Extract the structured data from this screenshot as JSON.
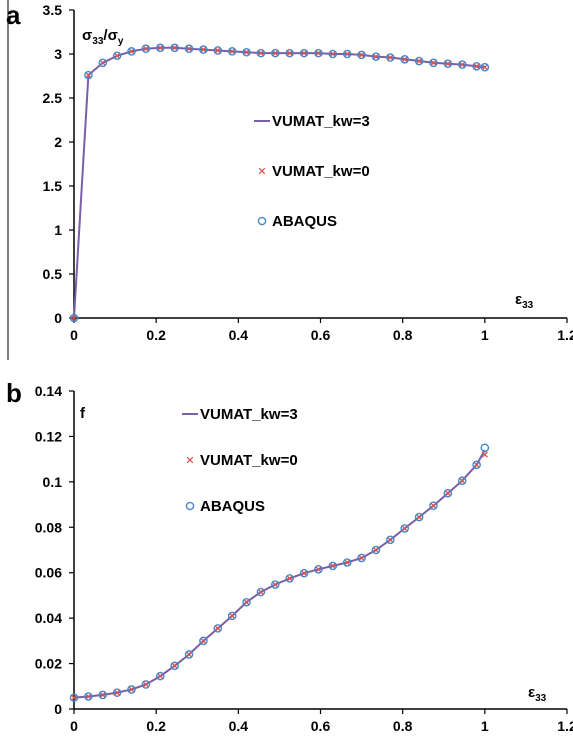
{
  "chart_data": [
    {
      "type": "line",
      "panel_label": "a",
      "ylabel": "σ33/σy",
      "xlabel": "ε33",
      "xlim": [
        0,
        1.2
      ],
      "ylim": [
        0,
        3.5
      ],
      "xticks": [
        "0",
        "0.2",
        "0.4",
        "0.6",
        "0.8",
        "1",
        "1.2"
      ],
      "yticks": [
        "0",
        "0.5",
        "1",
        "1.5",
        "2",
        "2.5",
        "3",
        "3.5"
      ],
      "grid": false,
      "legend_position": "center-right",
      "colors": {
        "line": "#7b5ea7",
        "cross": "#d9534f",
        "circle": "#4a86c5"
      },
      "series": [
        {
          "name": "VUMAT_kw=3",
          "marker": "line",
          "x": [
            0,
            0.035,
            0.07,
            0.105,
            0.14,
            0.175,
            0.21,
            0.245,
            0.28,
            0.315,
            0.35,
            0.385,
            0.42,
            0.455,
            0.49,
            0.525,
            0.56,
            0.595,
            0.63,
            0.665,
            0.7,
            0.735,
            0.77,
            0.805,
            0.84,
            0.875,
            0.91,
            0.945,
            0.98,
            1.0
          ],
          "y": [
            0,
            2.76,
            2.9,
            2.98,
            3.03,
            3.06,
            3.07,
            3.07,
            3.06,
            3.05,
            3.04,
            3.03,
            3.02,
            3.01,
            3.01,
            3.01,
            3.01,
            3.01,
            3.0,
            3.0,
            2.99,
            2.97,
            2.96,
            2.94,
            2.92,
            2.9,
            2.89,
            2.88,
            2.86,
            2.85
          ]
        },
        {
          "name": "VUMAT_kw=0",
          "marker": "cross",
          "x": [
            0,
            0.035,
            0.07,
            0.105,
            0.14,
            0.175,
            0.21,
            0.245,
            0.28,
            0.315,
            0.35,
            0.385,
            0.42,
            0.455,
            0.49,
            0.525,
            0.56,
            0.595,
            0.63,
            0.665,
            0.7,
            0.735,
            0.77,
            0.805,
            0.84,
            0.875,
            0.91,
            0.945,
            0.98,
            1.0
          ],
          "y": [
            0,
            2.76,
            2.9,
            2.98,
            3.03,
            3.06,
            3.07,
            3.07,
            3.06,
            3.05,
            3.04,
            3.03,
            3.02,
            3.01,
            3.01,
            3.01,
            3.01,
            3.01,
            3.0,
            3.0,
            2.99,
            2.97,
            2.96,
            2.94,
            2.92,
            2.9,
            2.89,
            2.88,
            2.86,
            2.85
          ]
        },
        {
          "name": "ABAQUS",
          "marker": "circle",
          "x": [
            0,
            0.035,
            0.07,
            0.105,
            0.14,
            0.175,
            0.21,
            0.245,
            0.28,
            0.315,
            0.35,
            0.385,
            0.42,
            0.455,
            0.49,
            0.525,
            0.56,
            0.595,
            0.63,
            0.665,
            0.7,
            0.735,
            0.77,
            0.805,
            0.84,
            0.875,
            0.91,
            0.945,
            0.98,
            1.0
          ],
          "y": [
            0,
            2.76,
            2.9,
            2.98,
            3.03,
            3.06,
            3.07,
            3.07,
            3.06,
            3.05,
            3.04,
            3.03,
            3.02,
            3.01,
            3.01,
            3.01,
            3.01,
            3.01,
            3.0,
            3.0,
            2.99,
            2.97,
            2.96,
            2.94,
            2.92,
            2.9,
            2.89,
            2.88,
            2.86,
            2.85
          ]
        }
      ]
    },
    {
      "type": "line",
      "panel_label": "b",
      "ylabel": "f",
      "xlabel": "ε33",
      "xlim": [
        0,
        1.2
      ],
      "ylim": [
        0,
        0.14
      ],
      "xticks": [
        "0",
        "0.2",
        "0.4",
        "0.6",
        "0.8",
        "1",
        "1.2"
      ],
      "yticks": [
        "0",
        "0.02",
        "0.04",
        "0.06",
        "0.08",
        "0.1",
        "0.12",
        "0.14"
      ],
      "grid": false,
      "legend_position": "top-left",
      "colors": {
        "line": "#7b5ea7",
        "cross": "#d9534f",
        "circle": "#4a86c5"
      },
      "series": [
        {
          "name": "VUMAT_kw=3",
          "marker": "line",
          "x": [
            0,
            0.035,
            0.07,
            0.105,
            0.14,
            0.175,
            0.21,
            0.245,
            0.28,
            0.315,
            0.35,
            0.385,
            0.42,
            0.455,
            0.49,
            0.525,
            0.56,
            0.595,
            0.63,
            0.665,
            0.7,
            0.735,
            0.77,
            0.805,
            0.84,
            0.875,
            0.91,
            0.945,
            0.98,
            1.0
          ],
          "y": [
            0.005,
            0.0055,
            0.0062,
            0.0072,
            0.0086,
            0.0108,
            0.0145,
            0.019,
            0.024,
            0.03,
            0.0355,
            0.041,
            0.047,
            0.0515,
            0.0548,
            0.0575,
            0.0598,
            0.0615,
            0.063,
            0.0645,
            0.0665,
            0.07,
            0.0745,
            0.0795,
            0.0845,
            0.0895,
            0.095,
            0.1005,
            0.1075,
            0.114
          ]
        },
        {
          "name": "VUMAT_kw=0",
          "marker": "cross",
          "x": [
            0,
            0.035,
            0.07,
            0.105,
            0.14,
            0.175,
            0.21,
            0.245,
            0.28,
            0.315,
            0.35,
            0.385,
            0.42,
            0.455,
            0.49,
            0.525,
            0.56,
            0.595,
            0.63,
            0.665,
            0.7,
            0.735,
            0.77,
            0.805,
            0.84,
            0.875,
            0.91,
            0.945,
            0.98,
            1.0
          ],
          "y": [
            0.005,
            0.0055,
            0.0062,
            0.0072,
            0.0086,
            0.0108,
            0.0145,
            0.019,
            0.024,
            0.03,
            0.0355,
            0.041,
            0.047,
            0.0515,
            0.0548,
            0.0575,
            0.0598,
            0.0615,
            0.063,
            0.0645,
            0.0665,
            0.07,
            0.0745,
            0.0795,
            0.0845,
            0.0895,
            0.095,
            0.1005,
            0.1075,
            0.112
          ]
        },
        {
          "name": "ABAQUS",
          "marker": "circle",
          "x": [
            0,
            0.035,
            0.07,
            0.105,
            0.14,
            0.175,
            0.21,
            0.245,
            0.28,
            0.315,
            0.35,
            0.385,
            0.42,
            0.455,
            0.49,
            0.525,
            0.56,
            0.595,
            0.63,
            0.665,
            0.7,
            0.735,
            0.77,
            0.805,
            0.84,
            0.875,
            0.91,
            0.945,
            0.98,
            1.0
          ],
          "y": [
            0.005,
            0.0055,
            0.0062,
            0.0072,
            0.0086,
            0.0108,
            0.0145,
            0.019,
            0.024,
            0.03,
            0.0355,
            0.041,
            0.047,
            0.0515,
            0.0548,
            0.0575,
            0.0598,
            0.0615,
            0.063,
            0.0645,
            0.0665,
            0.07,
            0.0745,
            0.0795,
            0.0845,
            0.0895,
            0.095,
            0.1005,
            0.1075,
            0.115
          ]
        }
      ]
    }
  ]
}
